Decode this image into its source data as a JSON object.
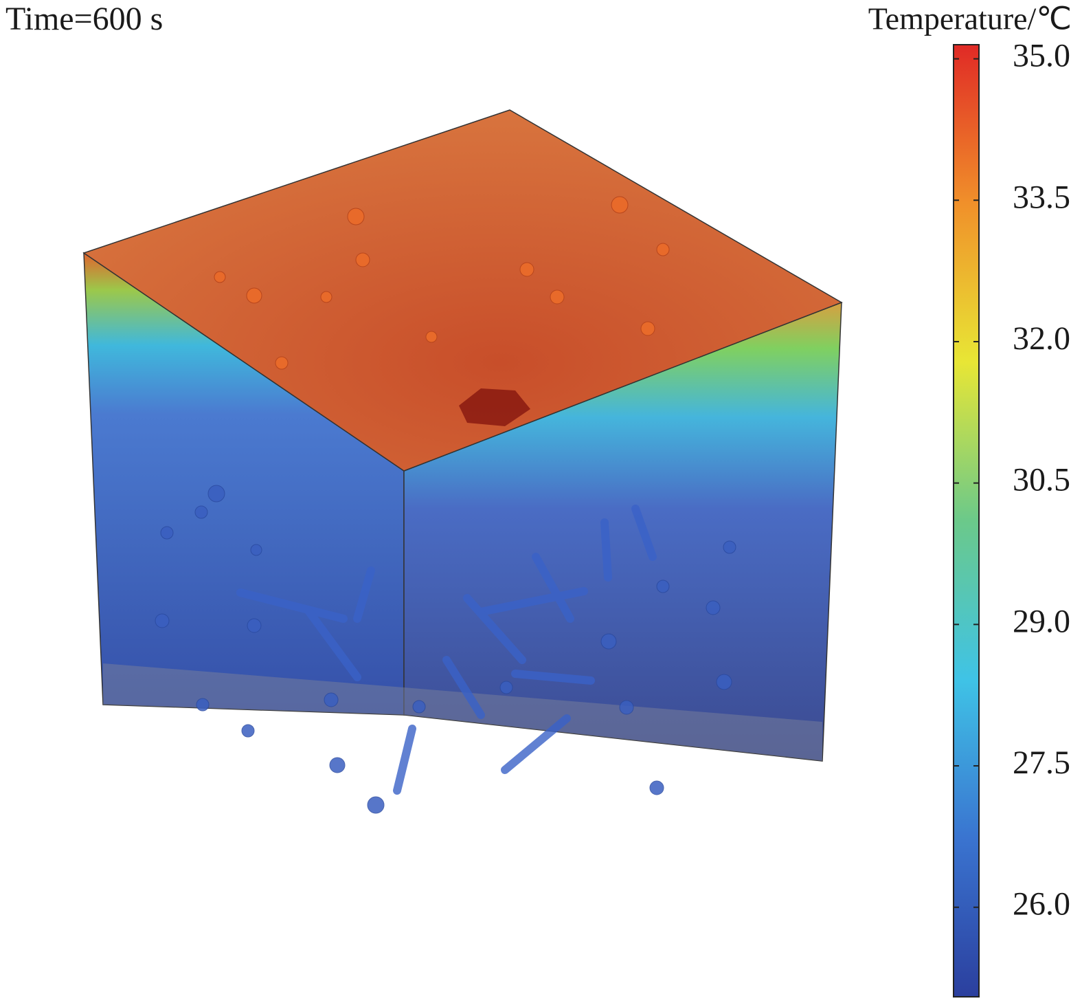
{
  "time_label": "Time=600 s",
  "colorbar": {
    "title": "Temperature/℃",
    "lim": [
      25.05,
      35.15
    ],
    "ticks": [
      {
        "value": 35,
        "label": "35.0"
      },
      {
        "value": 33.5,
        "label": "33.5"
      },
      {
        "value": 32,
        "label": "32.0"
      },
      {
        "value": 30.5,
        "label": "30.5"
      },
      {
        "value": 29,
        "label": "29.0"
      },
      {
        "value": 27.5,
        "label": "27.5"
      },
      {
        "value": 26,
        "label": "26.0"
      }
    ],
    "colors": [
      "#2b3f9e",
      "#3a74d0",
      "#3fc3e6",
      "#6bc98a",
      "#e8e635",
      "#f0902a",
      "#e02a26"
    ]
  }
}
